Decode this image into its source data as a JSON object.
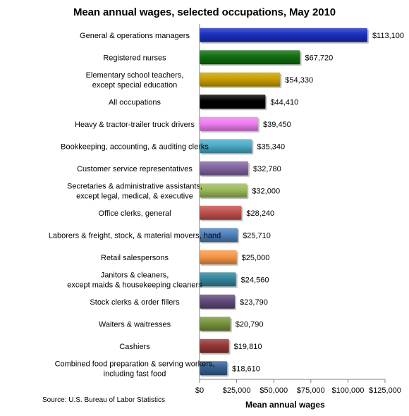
{
  "chart_data": {
    "type": "bar",
    "orientation": "horizontal",
    "title": "Mean annual wages, selected occupations, May 2010",
    "xlabel": "Mean annual wages",
    "ylabel": "",
    "xlim": [
      0,
      125000
    ],
    "xticks": [
      0,
      25000,
      50000,
      75000,
      100000,
      125000
    ],
    "xtick_labels": [
      "$0",
      "$25,000",
      "$50,000",
      "$75,000",
      "$100,000",
      "$125,000"
    ],
    "grid": false,
    "source": "Source: U.S. Bureau of Labor Statistics",
    "categories": [
      [
        "General & operations managers"
      ],
      [
        "Registered nurses"
      ],
      [
        "Elementary school teachers,",
        "except special education"
      ],
      [
        "All occupations"
      ],
      [
        "Heavy & tractor-trailer truck drivers"
      ],
      [
        "Bookkeeping, accounting, & auditing clerks"
      ],
      [
        "Customer service representatives"
      ],
      [
        "Secretaries & administrative assistants,",
        "except legal, medical, & executive"
      ],
      [
        "Office clerks, general"
      ],
      [
        "Laborers & freight, stock, & material movers, hand"
      ],
      [
        "Retail salespersons"
      ],
      [
        "Janitors & cleaners,",
        "except maids & housekeeping cleaners"
      ],
      [
        "Stock clerks & order fillers"
      ],
      [
        "Waiters & waitresses"
      ],
      [
        "Cashiers"
      ],
      [
        "Combined food preparation & serving workers,",
        "including fast food"
      ]
    ],
    "values": [
      113100,
      67720,
      54330,
      44410,
      39450,
      35340,
      32780,
      32000,
      28240,
      25710,
      25000,
      24560,
      23790,
      20790,
      19810,
      18610
    ],
    "value_labels": [
      "$113,100",
      "$67,720",
      "$54,330",
      "$44,410",
      "$39,450",
      "$35,340",
      "$32,780",
      "$32,000",
      "$28,240",
      "$25,710",
      "$25,000",
      "$24,560",
      "$23,790",
      "$20,790",
      "$19,810",
      "$18,610"
    ],
    "colors": [
      "#1a2fbf",
      "#0f6e0f",
      "#c9a000",
      "#000000",
      "#f07ff0",
      "#4bacc6",
      "#8064a2",
      "#9bbb59",
      "#c0504d",
      "#4f81bd",
      "#f79646",
      "#31859c",
      "#604a7b",
      "#77933c",
      "#953735",
      "#376092"
    ]
  }
}
